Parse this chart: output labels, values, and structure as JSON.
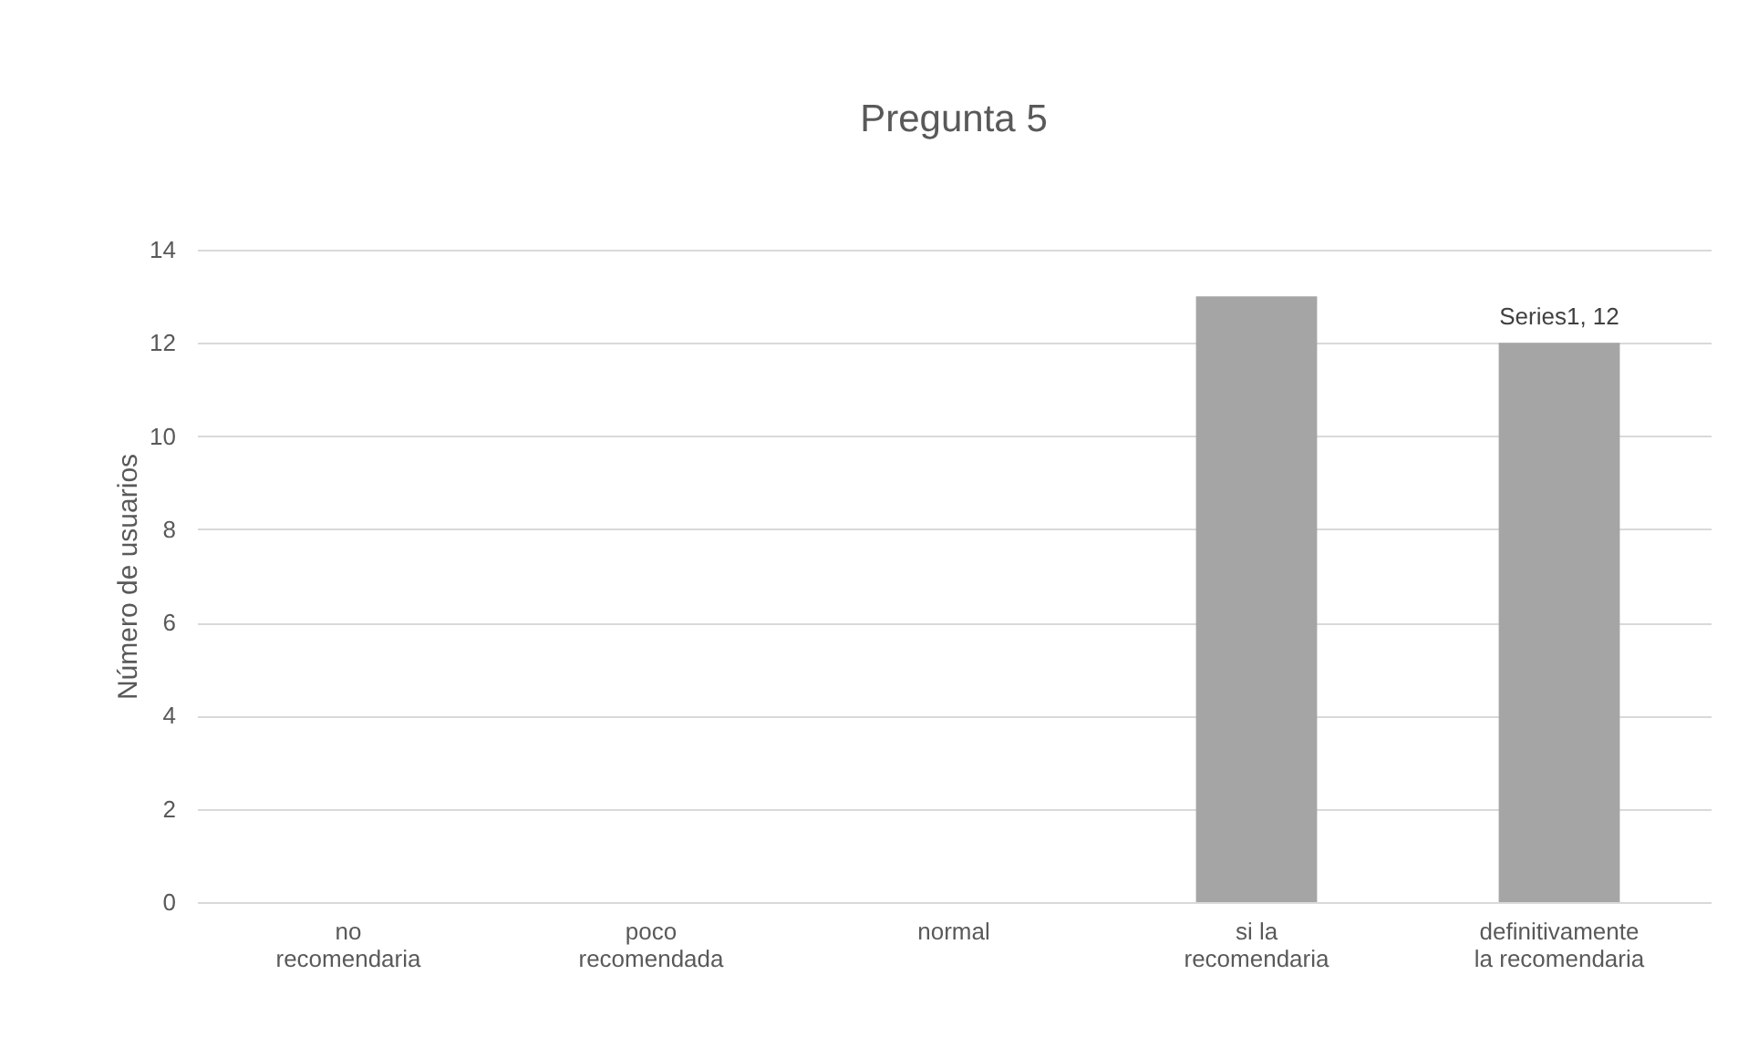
{
  "chart_data": {
    "type": "bar",
    "title": "Pregunta 5",
    "ylabel": "Número de usuarios",
    "categories": [
      "no\nrecomendaria",
      "poco\nrecomendada",
      "normal",
      "si la\nrecomendaria",
      "definitivamente\nla recomendaria"
    ],
    "values": [
      0,
      0,
      0,
      13,
      12
    ],
    "value_labels": [
      null,
      null,
      null,
      null,
      "Series1, 12"
    ],
    "color": "#a5a5a5",
    "ylim": [
      0,
      14
    ],
    "yticks": [
      0,
      2,
      4,
      6,
      8,
      10,
      12,
      14
    ],
    "grid": "y"
  }
}
